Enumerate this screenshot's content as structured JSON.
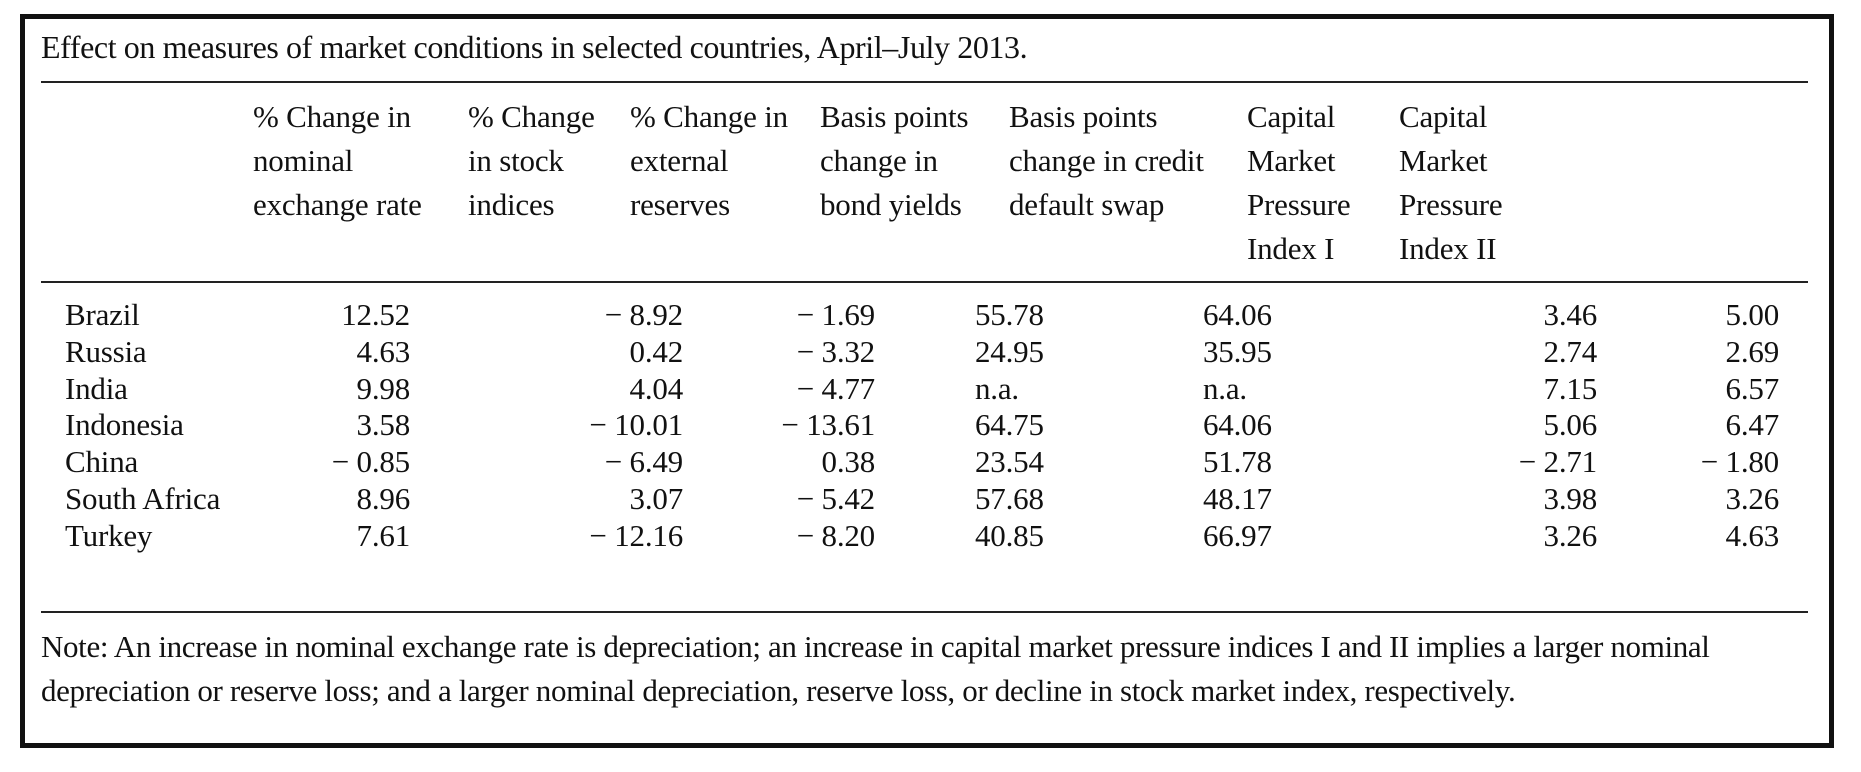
{
  "caption": "Effect on measures of market conditions in selected countries, April–July 2013.",
  "headers": [
    "% Change in\nnominal\nexchange rate",
    "% Change\nin stock\nindices",
    "% Change in\nexternal\nreserves",
    "Basis points\nchange in\nbond yields",
    "Basis points\nchange in credit\ndefault swap",
    "Capital\nMarket\nPressure\nIndex I",
    "Capital\nMarket\nPressure\nIndex II"
  ],
  "rows": [
    {
      "country": "Brazil",
      "values": [
        "12.52",
        "− 8.92",
        "− 1.69",
        "55.78",
        "64.06",
        "3.46",
        "5.00"
      ]
    },
    {
      "country": "Russia",
      "values": [
        "4.63",
        "0.42",
        "− 3.32",
        "24.95",
        "35.95",
        "2.74",
        "2.69"
      ]
    },
    {
      "country": "India",
      "values": [
        "9.98",
        "4.04",
        "− 4.77",
        "n.a.",
        "n.a.",
        "7.15",
        "6.57"
      ]
    },
    {
      "country": "Indonesia",
      "values": [
        "3.58",
        "− 10.01",
        "− 13.61",
        "64.75",
        "64.06",
        "5.06",
        "6.47"
      ]
    },
    {
      "country": "China",
      "values": [
        "− 0.85",
        "− 6.49",
        "0.38",
        "23.54",
        "51.78",
        "− 2.71",
        "− 1.80"
      ]
    },
    {
      "country": "South Africa",
      "values": [
        "8.96",
        "3.07",
        "− 5.42",
        "57.68",
        "48.17",
        "3.98",
        "3.26"
      ]
    },
    {
      "country": "Turkey",
      "values": [
        "7.61",
        "− 12.16",
        "− 8.20",
        "40.85",
        "66.97",
        "3.26",
        "4.63"
      ]
    }
  ],
  "note": "Note: An increase in nominal exchange rate is depreciation; an increase in capital market pressure indices I and II implies a larger nominal depreciation or reserve loss; and a larger nominal depreciation, reserve loss, or decline in stock market index, respectively."
}
